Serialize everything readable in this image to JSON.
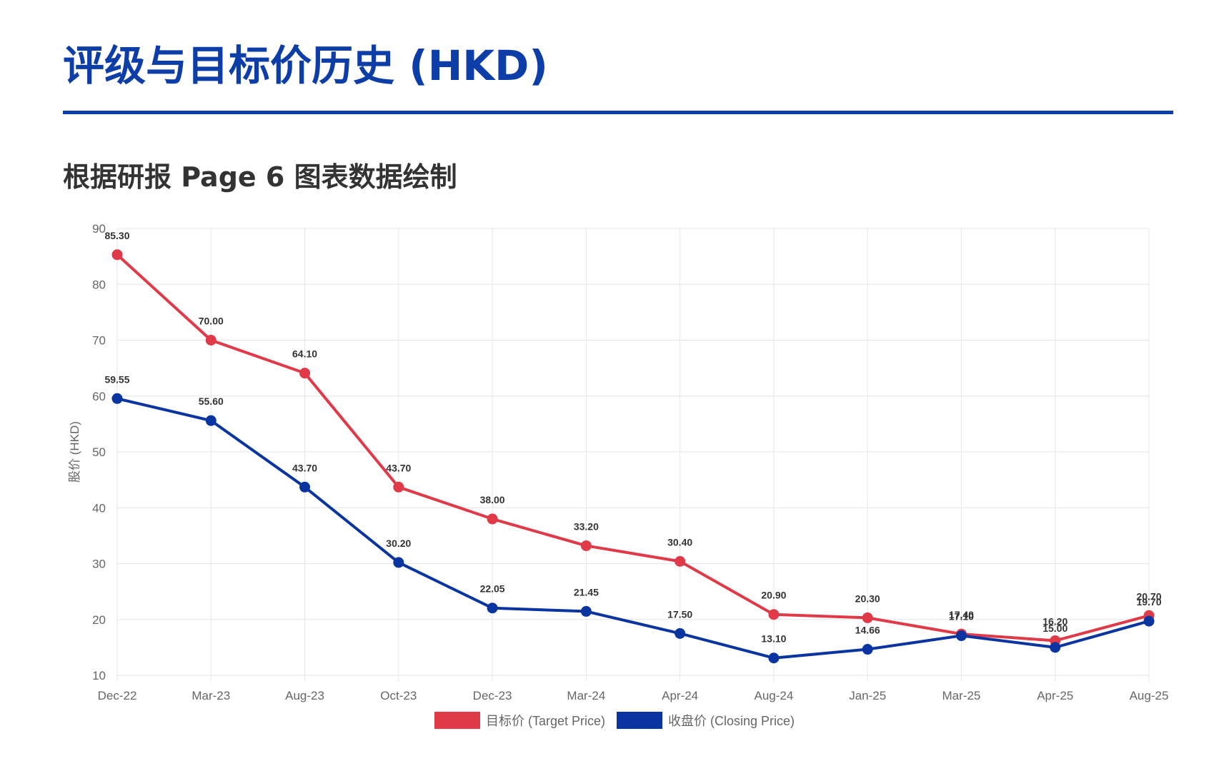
{
  "header": {
    "title": "评级与目标价历史 (HKD)",
    "subtitle": "根据研报 Page 6 图表数据绘制"
  },
  "colors": {
    "title": "#0d3ea8",
    "target": "#e03a48",
    "closing": "#0a35a0",
    "grid": "#e6e6e6"
  },
  "chart_data": {
    "type": "line",
    "categories": [
      "Dec-22",
      "Mar-23",
      "Aug-23",
      "Oct-23",
      "Dec-23",
      "Mar-24",
      "Apr-24",
      "Aug-24",
      "Jan-25",
      "Mar-25",
      "Apr-25",
      "Aug-25"
    ],
    "series": [
      {
        "name": "目标价 (Target Price)",
        "color": "#e03a48",
        "values": [
          85.3,
          70.0,
          64.1,
          43.7,
          38.0,
          33.2,
          30.4,
          20.9,
          20.3,
          17.4,
          16.2,
          20.7
        ],
        "labels": [
          "85.30",
          "70.00",
          "64.10",
          "43.70",
          "38.00",
          "33.20",
          "30.40",
          "20.90",
          "20.30",
          "17.40",
          "16.20",
          "20.70"
        ]
      },
      {
        "name": "收盘价 (Closing Price)",
        "color": "#0a35a0",
        "values": [
          59.55,
          55.6,
          43.7,
          30.2,
          22.05,
          21.45,
          17.5,
          13.1,
          14.66,
          17.1,
          15.0,
          19.7
        ],
        "labels": [
          "59.55",
          "55.60",
          "43.70",
          "30.20",
          "22.05",
          "21.45",
          "17.50",
          "13.10",
          "14.66",
          "17.10",
          "15.00",
          "19.70"
        ]
      }
    ],
    "xlabel": "",
    "ylabel": "股价 (HKD)",
    "ylim": [
      10,
      90
    ],
    "yticks": [
      10,
      20,
      30,
      40,
      50,
      60,
      70,
      80,
      90
    ],
    "grid": true,
    "legend": "bottom"
  }
}
